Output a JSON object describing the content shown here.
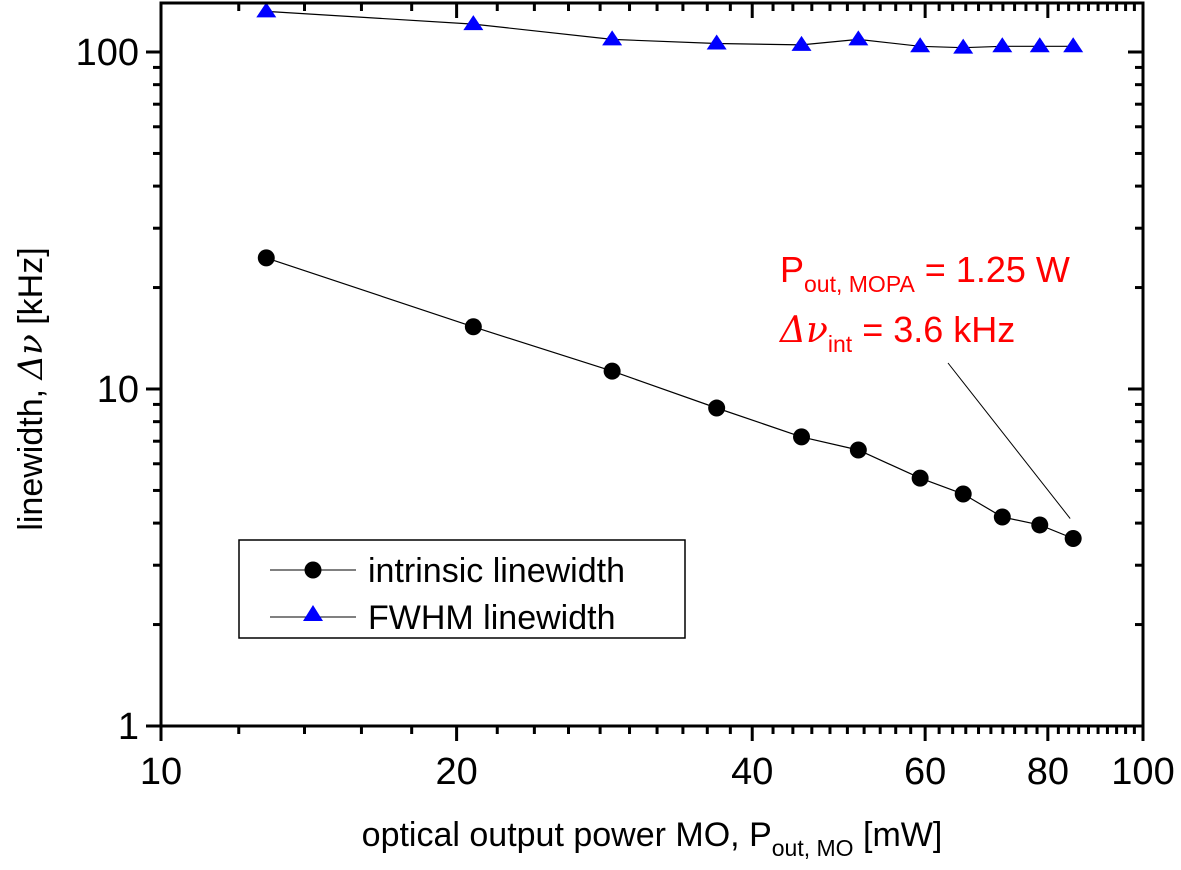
{
  "chart_data": {
    "type": "line",
    "title": "",
    "xlabel": {
      "main": "optical output power MO, P",
      "sub": "out, MO",
      "unit": " [mW]"
    },
    "ylabel": {
      "main": "linewidth, ",
      "symbol": "Δν",
      "unit": " [kHz]"
    },
    "xscale": "log",
    "yscale": "log",
    "xlim": [
      10,
      100
    ],
    "ylim": [
      1,
      140
    ],
    "xticks": [
      {
        "value": 10,
        "label": "10"
      },
      {
        "value": 20,
        "label": "20"
      },
      {
        "value": 40,
        "label": "40"
      },
      {
        "value": 60,
        "label": "60"
      },
      {
        "value": 80,
        "label": "80"
      },
      {
        "value": 100,
        "label": "100"
      }
    ],
    "xminor_ticks": [
      12,
      14,
      16,
      18,
      22,
      24,
      26,
      28,
      30,
      32,
      34,
      36,
      38,
      42,
      44,
      46,
      48,
      50,
      52,
      54,
      56,
      58,
      62,
      64,
      66,
      68,
      70,
      72,
      74,
      76,
      78,
      82,
      84,
      86,
      88,
      90,
      92,
      94,
      96,
      98
    ],
    "yticks": [
      {
        "value": 1,
        "label": "1"
      },
      {
        "value": 10,
        "label": "10"
      },
      {
        "value": 100,
        "label": "100"
      }
    ],
    "yminor_ticks": [
      2,
      3,
      4,
      5,
      6,
      7,
      8,
      9,
      20,
      30,
      40,
      50,
      60,
      70,
      80,
      90
    ],
    "grid": false,
    "legend": {
      "position": "lower-left",
      "entries": [
        {
          "label": "intrinsic linewidth",
          "marker": "circle",
          "color": "#000000"
        },
        {
          "label": "FWHM linewidth",
          "marker": "triangle",
          "color": "#0000FF"
        }
      ]
    },
    "x": [
      12.8,
      20.8,
      28.8,
      36.8,
      44.9,
      51.3,
      59.3,
      65.6,
      71.9,
      78.5,
      84.9
    ],
    "series": [
      {
        "name": "intrinsic linewidth",
        "marker": "circle",
        "color": "#000000",
        "values": [
          24.5,
          15.3,
          11.3,
          8.78,
          7.21,
          6.59,
          5.44,
          4.88,
          4.17,
          3.95,
          3.6
        ]
      },
      {
        "name": "FWHM linewidth",
        "marker": "triangle",
        "color": "#0000FF",
        "values": [
          132,
          121,
          109,
          106,
          105,
          109,
          104,
          103,
          104,
          104,
          104
        ]
      }
    ],
    "annotation": {
      "color": "#FF0000",
      "line1": {
        "main": "P",
        "sub": "out, MOPA",
        "rest": " = 1.25 W"
      },
      "line2": {
        "main": "Δν",
        "sub": "int",
        "rest": " = 3.6 kHz"
      },
      "points_to": {
        "x": 84.9,
        "y": 3.6
      }
    }
  }
}
